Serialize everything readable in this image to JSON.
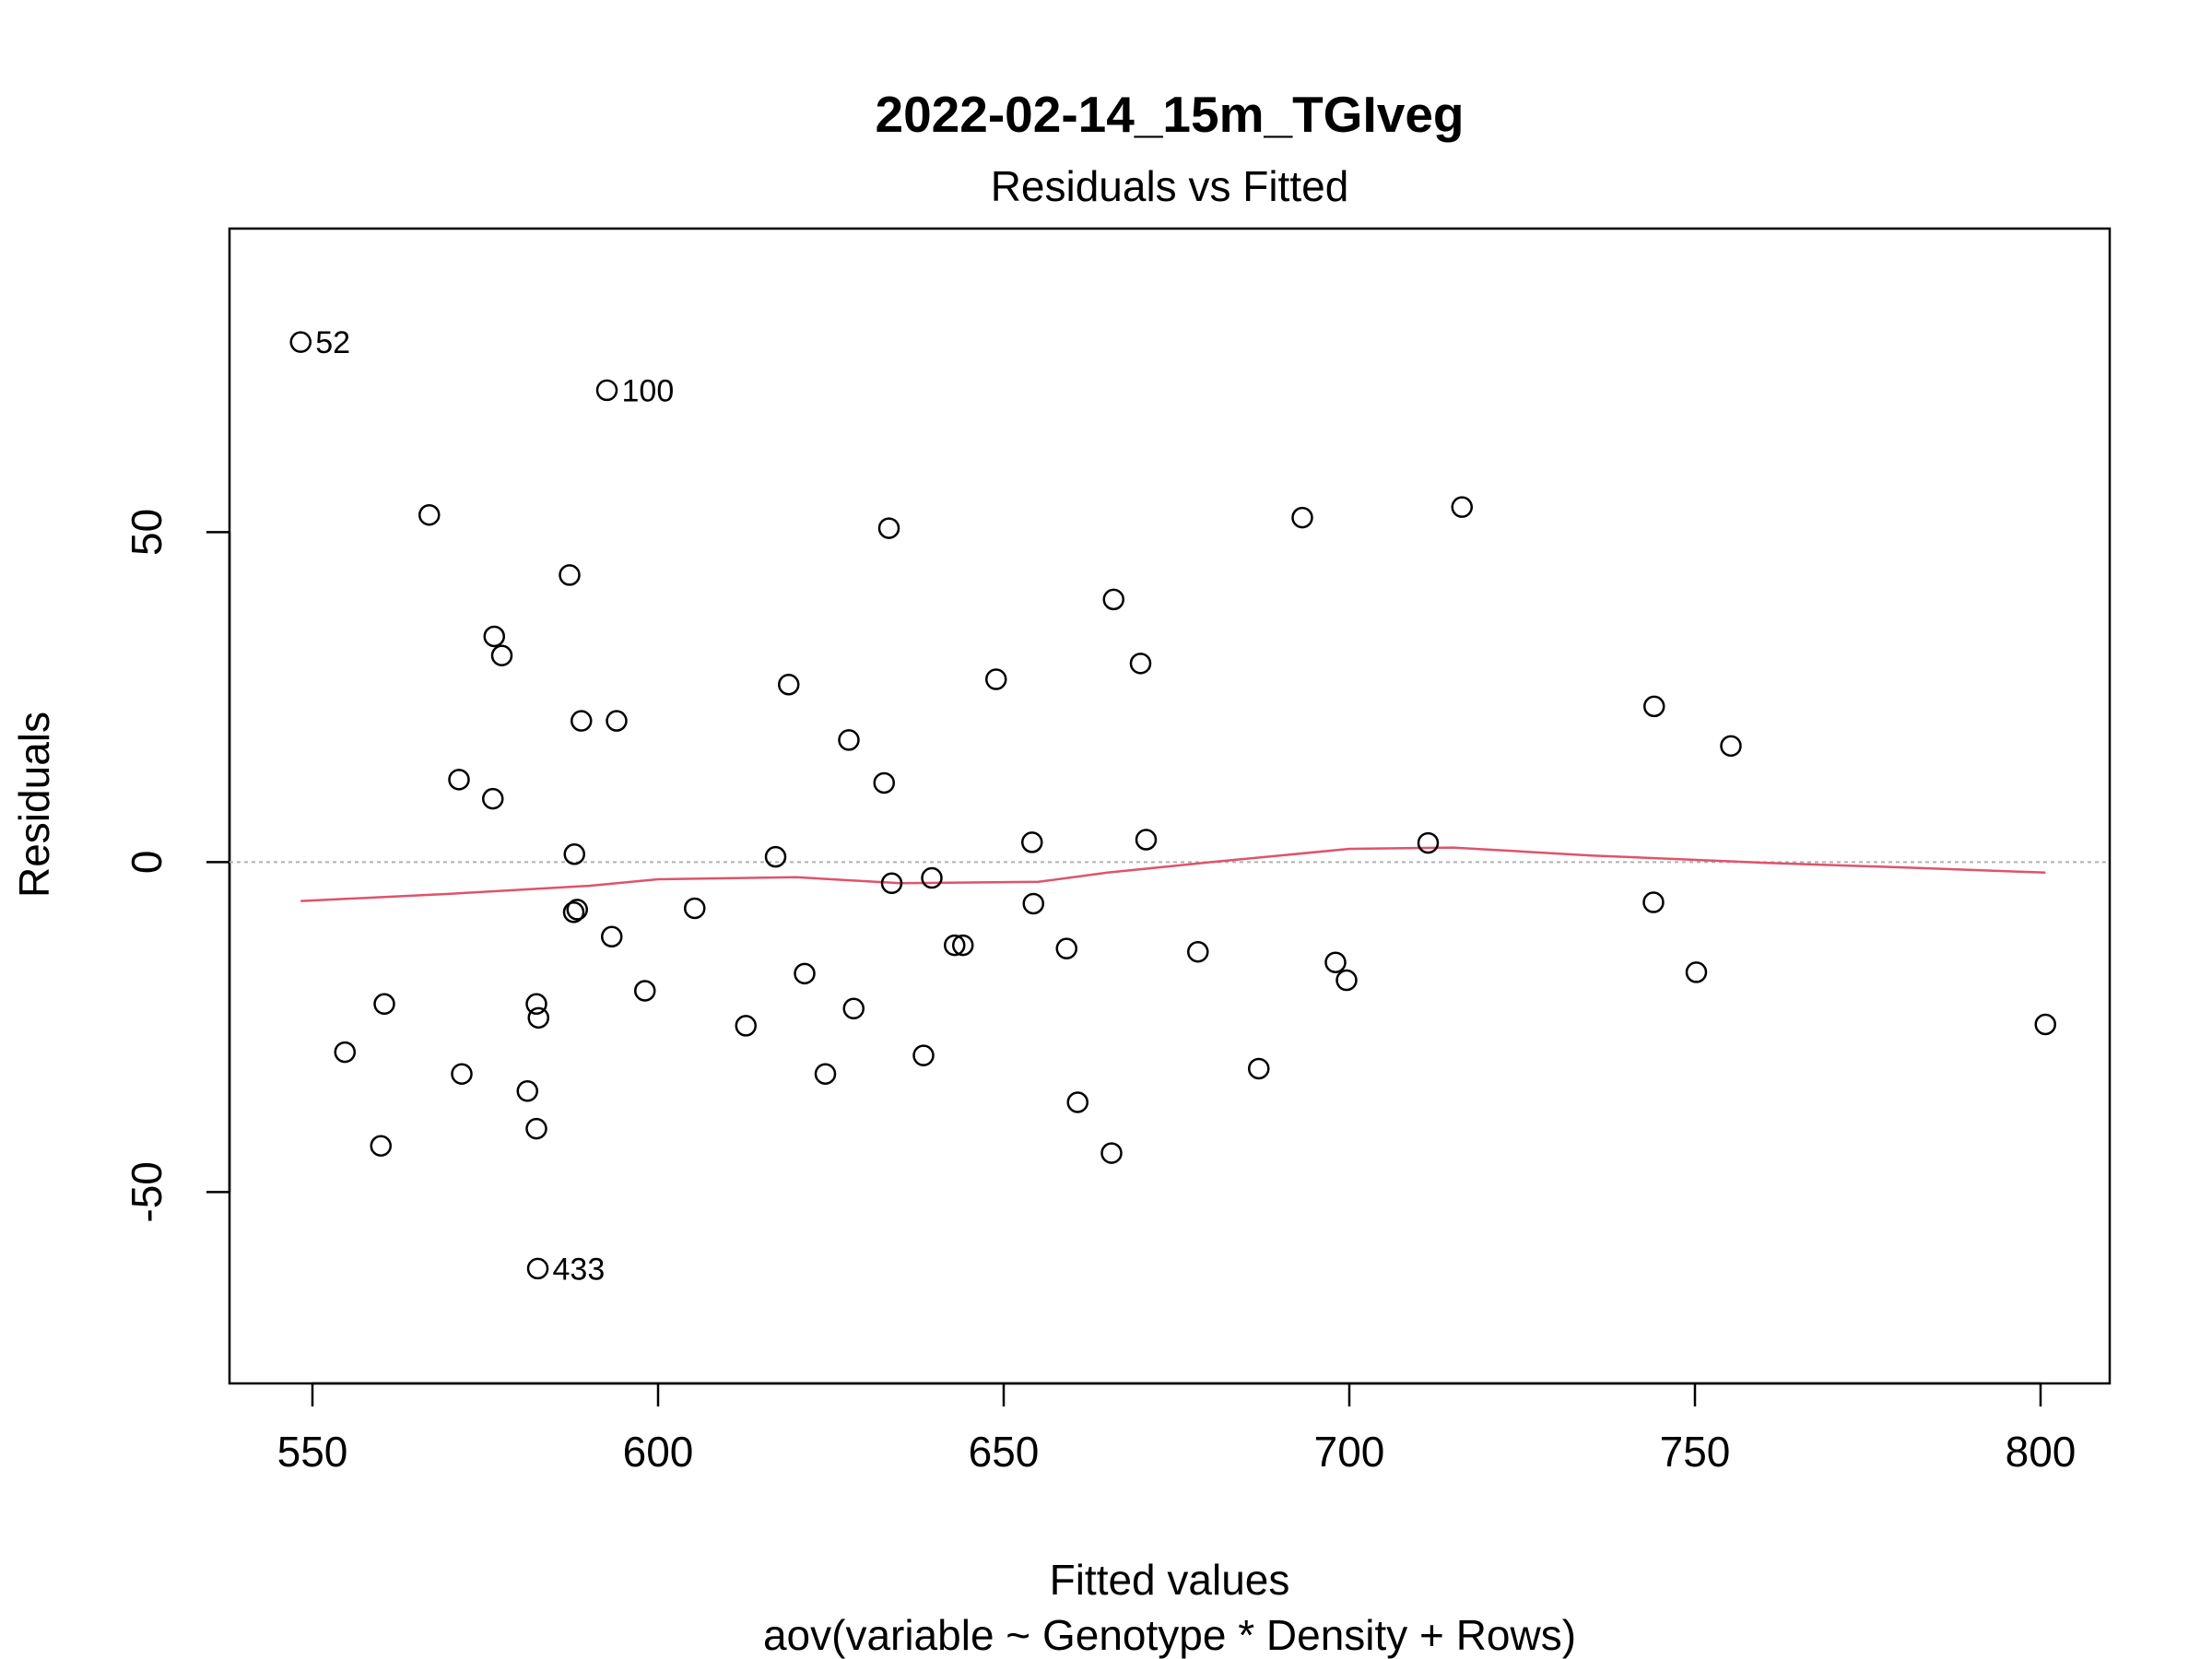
{
  "chart_data": {
    "type": "scatter",
    "title": "2022-02-14_15m_TGIveg",
    "subtitle": "Residuals vs Fitted",
    "xlabel": "Fitted values",
    "xlabel2": "aov(variable ~ Genotype * Density + Rows)",
    "ylabel": "Residuals",
    "xlim": [
      538,
      810
    ],
    "ylim": [
      -79,
      96
    ],
    "xticks": [
      550,
      600,
      650,
      700,
      750,
      800
    ],
    "yticks": [
      -50,
      0,
      50
    ],
    "zero_line_color": "#b0b0b0",
    "smooth_color": "#DF536B",
    "points": [
      {
        "x": 548.3,
        "y": 78.8,
        "label": "52"
      },
      {
        "x": 592.6,
        "y": 71.5,
        "label": "100"
      },
      {
        "x": 582.6,
        "y": -61.6,
        "label": "433"
      },
      {
        "x": 566.9,
        "y": 52.6
      },
      {
        "x": 587.2,
        "y": 43.5
      },
      {
        "x": 576.3,
        "y": 34.2
      },
      {
        "x": 577.4,
        "y": 31.3
      },
      {
        "x": 588.9,
        "y": 21.4
      },
      {
        "x": 594.0,
        "y": 21.4
      },
      {
        "x": 571.2,
        "y": 12.5
      },
      {
        "x": 576.1,
        "y": 9.6
      },
      {
        "x": 587.9,
        "y": 1.2
      },
      {
        "x": 587.8,
        "y": -7.6
      },
      {
        "x": 588.3,
        "y": -7.2
      },
      {
        "x": 593.3,
        "y": -11.3
      },
      {
        "x": 582.4,
        "y": -21.5
      },
      {
        "x": 582.7,
        "y": -23.6
      },
      {
        "x": 598.1,
        "y": -19.5
      },
      {
        "x": 560.4,
        "y": -21.5
      },
      {
        "x": 554.7,
        "y": -28.8
      },
      {
        "x": 571.6,
        "y": -32.1
      },
      {
        "x": 581.1,
        "y": -34.7
      },
      {
        "x": 582.4,
        "y": -40.4
      },
      {
        "x": 559.9,
        "y": -43.0
      },
      {
        "x": 605.3,
        "y": -7.0
      },
      {
        "x": 612.7,
        "y": -24.8
      },
      {
        "x": 617.0,
        "y": 0.8
      },
      {
        "x": 618.9,
        "y": 26.9
      },
      {
        "x": 621.2,
        "y": -16.9
      },
      {
        "x": 624.2,
        "y": -32.1
      },
      {
        "x": 627.6,
        "y": 18.5
      },
      {
        "x": 628.3,
        "y": -22.2
      },
      {
        "x": 632.7,
        "y": 12.0
      },
      {
        "x": 633.4,
        "y": 50.6
      },
      {
        "x": 633.8,
        "y": -3.2
      },
      {
        "x": 638.4,
        "y": -29.3
      },
      {
        "x": 639.6,
        "y": -2.4
      },
      {
        "x": 642.9,
        "y": -12.6
      },
      {
        "x": 644.1,
        "y": -12.6
      },
      {
        "x": 648.9,
        "y": 27.7
      },
      {
        "x": 654.1,
        "y": 3.0
      },
      {
        "x": 654.3,
        "y": -6.3
      },
      {
        "x": 659.1,
        "y": -13.1
      },
      {
        "x": 660.7,
        "y": -36.4
      },
      {
        "x": 665.6,
        "y": -44.1
      },
      {
        "x": 665.9,
        "y": 39.8
      },
      {
        "x": 669.8,
        "y": 30.1
      },
      {
        "x": 670.6,
        "y": 3.4
      },
      {
        "x": 678.1,
        "y": -13.6
      },
      {
        "x": 686.9,
        "y": -31.3
      },
      {
        "x": 693.2,
        "y": 52.2
      },
      {
        "x": 698.0,
        "y": -15.2
      },
      {
        "x": 699.6,
        "y": -17.9
      },
      {
        "x": 711.4,
        "y": 2.9
      },
      {
        "x": 716.3,
        "y": 53.8
      },
      {
        "x": 744.1,
        "y": 23.6
      },
      {
        "x": 744.0,
        "y": -6.1
      },
      {
        "x": 750.2,
        "y": -16.7
      },
      {
        "x": 755.2,
        "y": 17.6
      },
      {
        "x": 800.7,
        "y": -24.6
      }
    ],
    "smooth": [
      [
        548.3,
        -5.9
      ],
      [
        570,
        -4.8
      ],
      [
        590,
        -3.6
      ],
      [
        600,
        -2.6
      ],
      [
        620,
        -2.3
      ],
      [
        635,
        -3.2
      ],
      [
        655,
        -3.0
      ],
      [
        665,
        -1.6
      ],
      [
        680,
        0.0
      ],
      [
        700,
        2.0
      ],
      [
        715,
        2.2
      ],
      [
        735,
        1.0
      ],
      [
        760,
        -0.1
      ],
      [
        780,
        -0.8
      ],
      [
        800.7,
        -1.6
      ]
    ]
  }
}
